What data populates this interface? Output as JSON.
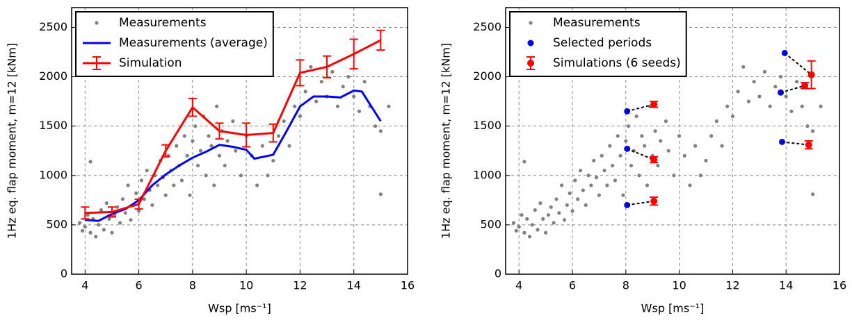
{
  "chart_data": [
    {
      "type": "scatter",
      "xlabel": "Wsp [ms⁻¹]",
      "ylabel": "1Hz eq. flap moment, m=12 [kNm]",
      "xlim": [
        3.5,
        16
      ],
      "ylim": [
        0,
        2700
      ],
      "xticks": [
        4,
        6,
        8,
        10,
        12,
        14,
        16
      ],
      "yticks": [
        0,
        500,
        1000,
        1500,
        2000,
        2500
      ],
      "grid": true,
      "legend": "upper-left",
      "series": [
        {
          "name": "Measurements",
          "type": "scatter",
          "color": "#808080",
          "x": [
            3.8,
            3.9,
            4.0,
            4.1,
            4.2,
            4.2,
            4.3,
            4.4,
            4.5,
            4.6,
            4.7,
            4.8,
            4.9,
            5.0,
            5.1,
            5.2,
            5.3,
            5.4,
            5.5,
            5.6,
            5.7,
            5.8,
            5.9,
            6.0,
            6.1,
            6.2,
            6.3,
            6.4,
            6.5,
            6.6,
            6.7,
            6.8,
            6.9,
            7.0,
            7.1,
            7.2,
            7.3,
            7.4,
            7.5,
            7.6,
            7.7,
            7.8,
            7.9,
            8.0,
            8.1,
            8.2,
            8.3,
            8.4,
            8.5,
            8.6,
            8.7,
            8.8,
            8.9,
            9.0,
            9.1,
            9.2,
            9.3,
            9.5,
            9.6,
            9.8,
            10.0,
            10.2,
            10.4,
            10.6,
            10.8,
            11.0,
            11.2,
            11.4,
            11.6,
            11.8,
            12.0,
            12.2,
            12.4,
            12.6,
            12.8,
            13.0,
            13.2,
            13.4,
            13.6,
            13.8,
            14.0,
            14.2,
            14.4,
            14.6,
            14.8,
            15.0,
            15.0,
            15.3
          ],
          "values": [
            520,
            440,
            480,
            600,
            1140,
            420,
            560,
            380,
            500,
            650,
            450,
            720,
            560,
            420,
            600,
            680,
            520,
            760,
            620,
            900,
            550,
            700,
            820,
            640,
            950,
            760,
            1050,
            850,
            700,
            1000,
            900,
            1150,
            980,
            800,
            1200,
            1050,
            900,
            1300,
            1100,
            950,
            1400,
            1200,
            800,
            1350,
            1500,
            1100,
            1250,
            1600,
            1000,
            1400,
            1300,
            900,
            1700,
            1200,
            1450,
            1100,
            1350,
            1550,
            1250,
            1000,
            1400,
            1200,
            900,
            1300,
            1000,
            1150,
            1400,
            1550,
            1300,
            1700,
            1600,
            1850,
            2100,
            1750,
            1950,
            1800,
            2050,
            1700,
            1900,
            2000,
            1800,
            1650,
            1950,
            1700,
            1500,
            1450,
            810,
            1700
          ]
        },
        {
          "name": "Measurements (average)",
          "type": "line",
          "color": "#0000ff",
          "x": [
            4,
            4.5,
            5,
            5.5,
            6,
            6.5,
            7,
            7.5,
            8,
            8.5,
            9,
            9.5,
            10,
            10.3,
            11,
            11.5,
            12,
            12.5,
            13,
            13.5,
            14,
            14.3,
            15
          ],
          "values": [
            550,
            540,
            610,
            660,
            750,
            900,
            1010,
            1100,
            1180,
            1240,
            1310,
            1290,
            1260,
            1170,
            1210,
            1450,
            1700,
            1800,
            1800,
            1790,
            1860,
            1850,
            1550
          ]
        },
        {
          "name": "Simulation",
          "type": "errorline",
          "color": "#ff0000",
          "x": [
            4,
            5,
            6,
            7,
            8,
            9,
            10,
            11,
            12,
            13,
            14,
            15
          ],
          "values": [
            620,
            630,
            710,
            1250,
            1690,
            1450,
            1410,
            1430,
            2040,
            2100,
            2230,
            2370
          ],
          "errors": [
            60,
            50,
            50,
            60,
            90,
            80,
            120,
            90,
            130,
            110,
            150,
            100
          ]
        }
      ]
    },
    {
      "type": "scatter",
      "xlabel": "Wsp [ms⁻¹]",
      "ylabel": "1Hz eq. flap moment, m=12 [kNm]",
      "xlim": [
        3.5,
        16
      ],
      "ylim": [
        0,
        2700
      ],
      "xticks": [
        4,
        6,
        8,
        10,
        12,
        14,
        16
      ],
      "yticks": [
        0,
        500,
        1000,
        1500,
        2000,
        2500
      ],
      "grid": true,
      "legend": "upper-left",
      "series": [
        {
          "name": "Measurements",
          "type": "scatter",
          "color": "#808080",
          "x": [
            3.8,
            3.9,
            4.0,
            4.1,
            4.2,
            4.2,
            4.3,
            4.4,
            4.5,
            4.6,
            4.7,
            4.8,
            4.9,
            5.0,
            5.1,
            5.2,
            5.3,
            5.4,
            5.5,
            5.6,
            5.7,
            5.8,
            5.9,
            6.0,
            6.1,
            6.2,
            6.3,
            6.4,
            6.5,
            6.6,
            6.7,
            6.8,
            6.9,
            7.0,
            7.1,
            7.2,
            7.3,
            7.4,
            7.5,
            7.6,
            7.7,
            7.8,
            7.9,
            8.0,
            8.1,
            8.2,
            8.3,
            8.4,
            8.5,
            8.6,
            8.7,
            8.8,
            8.9,
            9.0,
            9.1,
            9.2,
            9.3,
            9.5,
            9.6,
            9.8,
            10.0,
            10.2,
            10.4,
            10.6,
            10.8,
            11.0,
            11.2,
            11.4,
            11.6,
            11.8,
            12.0,
            12.2,
            12.4,
            12.6,
            12.8,
            13.0,
            13.2,
            13.4,
            13.6,
            13.8,
            14.0,
            14.2,
            14.4,
            14.6,
            14.8,
            15.0,
            15.0,
            15.3
          ],
          "values": [
            520,
            440,
            480,
            600,
            1140,
            420,
            560,
            380,
            500,
            650,
            450,
            720,
            560,
            420,
            600,
            680,
            520,
            760,
            620,
            900,
            550,
            700,
            820,
            640,
            950,
            760,
            1050,
            850,
            700,
            1000,
            900,
            1150,
            980,
            800,
            1200,
            1050,
            900,
            1300,
            1100,
            950,
            1400,
            1200,
            800,
            1350,
            1500,
            1100,
            1250,
            1600,
            1000,
            1400,
            1300,
            900,
            1700,
            1200,
            1450,
            1100,
            1350,
            1550,
            1250,
            1000,
            1400,
            1200,
            900,
            1300,
            1000,
            1150,
            1400,
            1550,
            1300,
            1700,
            1600,
            1850,
            2100,
            1750,
            1950,
            1800,
            2050,
            1700,
            1900,
            2000,
            1800,
            1650,
            1950,
            1700,
            1500,
            1450,
            810,
            1700
          ]
        },
        {
          "name": "Selected periods",
          "type": "points",
          "color": "#0000ff",
          "x": [
            8.05,
            8.05,
            8.05,
            13.95,
            13.8,
            13.85
          ],
          "values": [
            1650,
            1270,
            700,
            2240,
            1840,
            1340
          ]
        },
        {
          "name": "Simulations (6 seeds)",
          "type": "errorpoints",
          "color": "#ff0000",
          "pairs_with": "Selected periods",
          "x": [
            9.05,
            9.05,
            9.05,
            14.95,
            14.7,
            14.85
          ],
          "values": [
            1720,
            1160,
            740,
            2020,
            1910,
            1310
          ],
          "errors": [
            30,
            30,
            40,
            140,
            30,
            40
          ]
        }
      ]
    }
  ]
}
